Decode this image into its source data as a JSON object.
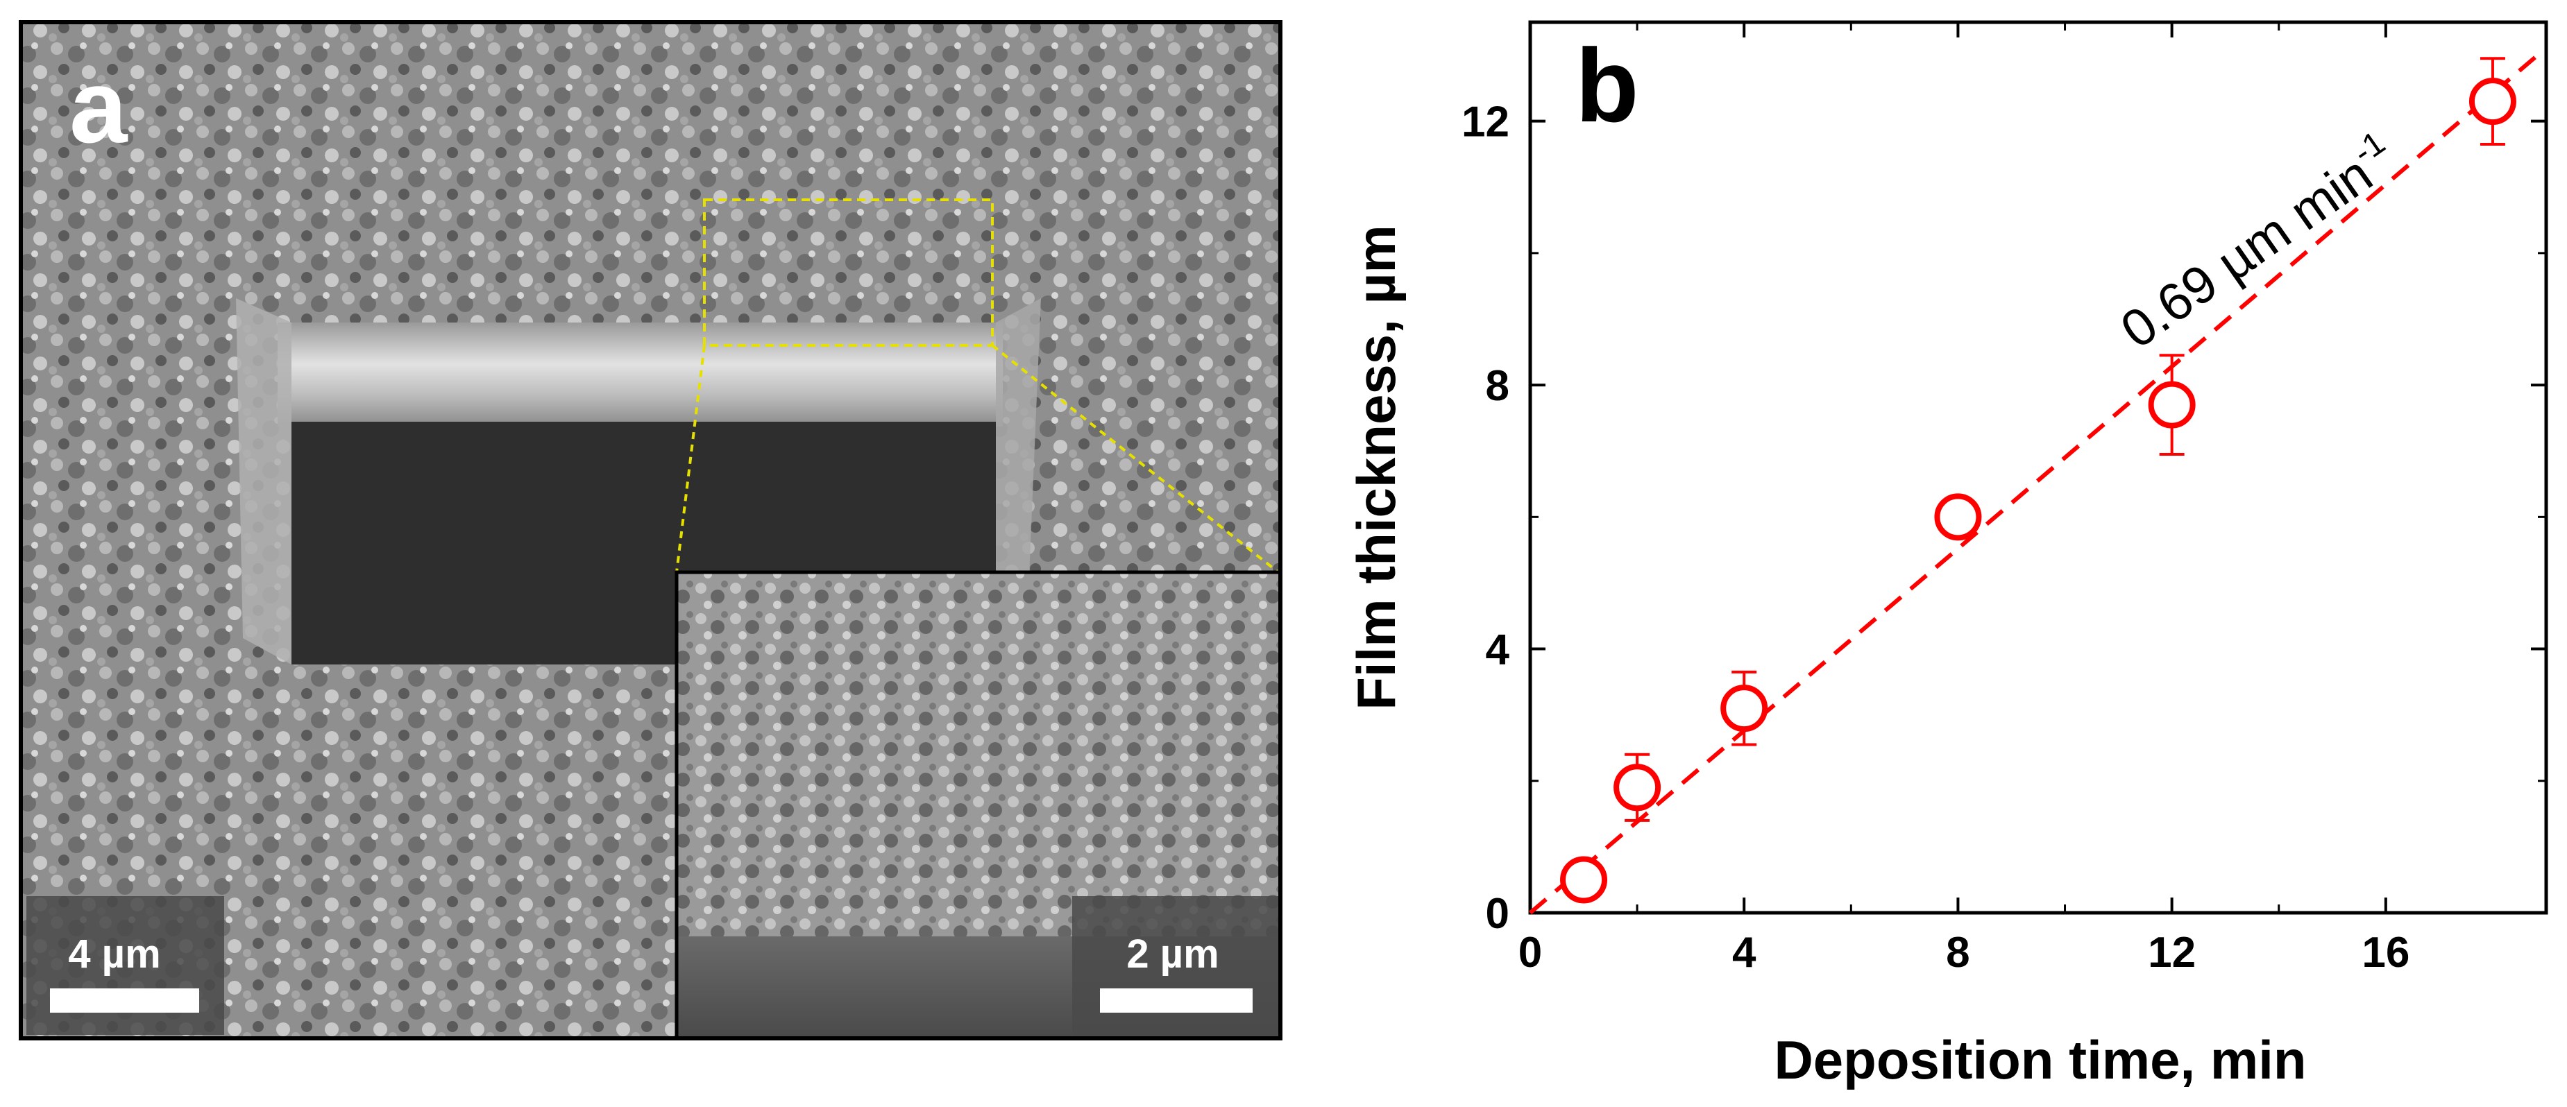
{
  "figure": {
    "panel_a": {
      "label": "a",
      "main_scale_bar": "4 µm",
      "inset_scale_bar": "2 µm",
      "inset_outline_color": "#e6e000"
    },
    "panel_b": {
      "label": "b",
      "fit_annotation": "0.69 µm min",
      "fit_annotation_exponent": "-1"
    }
  },
  "chart_data": {
    "type": "scatter",
    "title": "",
    "xlabel": "Deposition time, min",
    "ylabel": "Film thickness, µm",
    "xlim": [
      0,
      19
    ],
    "ylim": [
      0,
      13.5
    ],
    "xticks": [
      0,
      4,
      8,
      12,
      16
    ],
    "xtick_labels": [
      "0",
      "4",
      "8",
      "12",
      "16"
    ],
    "yticks": [
      0,
      4,
      8,
      12
    ],
    "ytick_labels": [
      "0",
      "4",
      "8",
      "12"
    ],
    "grid": false,
    "series": [
      {
        "name": "Film thickness",
        "marker": "open-circle",
        "color": "#ff0000",
        "x": [
          1,
          2,
          4,
          8,
          12,
          18
        ],
        "y": [
          0.5,
          1.9,
          3.1,
          6.0,
          7.7,
          12.3
        ],
        "yerr": [
          0.15,
          0.5,
          0.55,
          0.15,
          0.75,
          0.65
        ]
      }
    ],
    "fit_line": {
      "style": "dashed",
      "color": "#ff0000",
      "slope": 0.69,
      "intercept": 0,
      "x_range": [
        0,
        18.9
      ]
    }
  }
}
